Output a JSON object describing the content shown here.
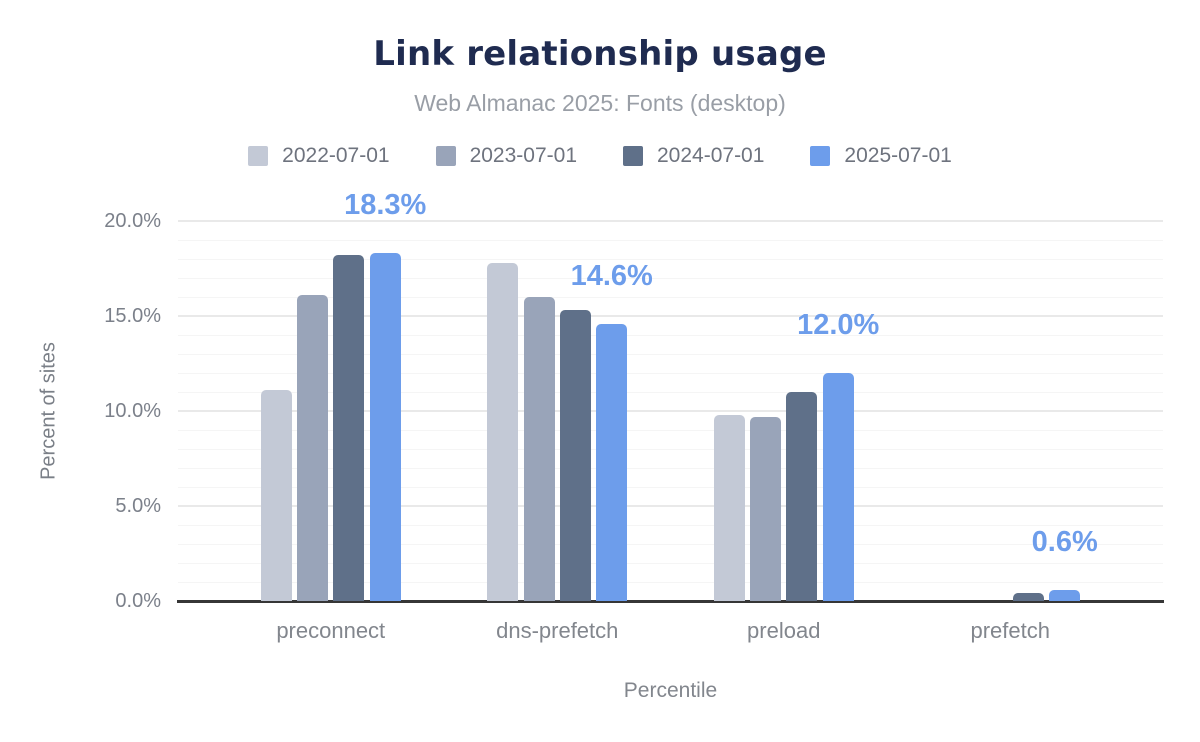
{
  "header": {
    "title": "Link relationship usage",
    "subtitle": "Web Almanac 2025: Fonts (desktop)"
  },
  "chart_data": {
    "type": "bar",
    "title": "Link relationship usage",
    "subtitle": "Web Almanac 2025: Fonts (desktop)",
    "xlabel": "Percentile",
    "ylabel": "Percent of sites",
    "ylim": [
      0,
      20
    ],
    "y_ticks": [
      {
        "value": 20,
        "label": "20.0%"
      },
      {
        "value": 15,
        "label": "15.0%"
      },
      {
        "value": 10,
        "label": "10.0%"
      },
      {
        "value": 5,
        "label": "5.0%"
      },
      {
        "value": 0,
        "label": "0.0%"
      }
    ],
    "grid": {
      "major_interval_pct": 5,
      "minor_interval_pct": 1,
      "on": true
    },
    "legend_position": "top",
    "categories": [
      "preconnect",
      "dns-prefetch",
      "preload",
      "prefetch"
    ],
    "series": [
      {
        "name": "2022-07-01",
        "color": "#c3c9d6",
        "values": [
          11.1,
          17.8,
          9.8,
          null
        ]
      },
      {
        "name": "2023-07-01",
        "color": "#99a4b9",
        "values": [
          16.1,
          16.0,
          9.7,
          null
        ]
      },
      {
        "name": "2024-07-01",
        "color": "#5f7089",
        "values": [
          18.2,
          15.3,
          11.0,
          0.4
        ]
      },
      {
        "name": "2025-07-01",
        "color": "#6d9deb",
        "values": [
          18.3,
          14.6,
          12.0,
          0.6
        ]
      }
    ],
    "data_labels": {
      "series": "2025-07-01",
      "color": "#6d9deb",
      "values": [
        "18.3%",
        "14.6%",
        "12.0%",
        "0.6%"
      ]
    },
    "colors": {
      "title": "#1f2b50",
      "subtitle": "#999ea6",
      "axis_text": "#7b808a",
      "baseline": "#363636"
    }
  }
}
